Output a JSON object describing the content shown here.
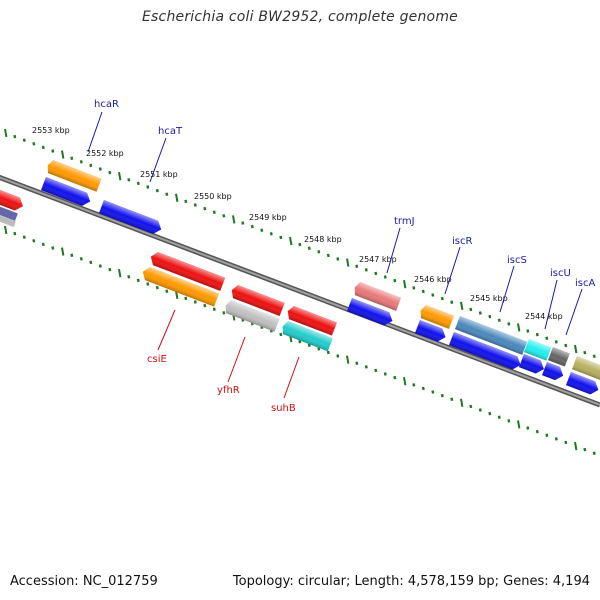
{
  "title": "Escherichia coli BW2952, complete genome",
  "footer": {
    "accession": "Accession: NC_012759",
    "summary": "Topology: circular; Length: 4,578,159 bp; Genes: 4,194"
  },
  "colors": {
    "backbone": "#8a8a8a",
    "tick_dots": "#1d7a1d",
    "label_forward": "#1a1aa8",
    "label_reverse": "#d01010"
  },
  "kbp_labels": [
    "2553 kbp",
    "2552 kbp",
    "2551 kbp",
    "2550 kbp",
    "2549 kbp",
    "2548 kbp",
    "2547 kbp",
    "2546 kbp",
    "2545 kbp",
    "2544 kbp"
  ],
  "forward_gene_labels": [
    "hcaR",
    "hcaT",
    "trmJ",
    "iscR",
    "iscS",
    "iscU",
    "iscA"
  ],
  "reverse_gene_labels": [
    "csiE",
    "yfhR",
    "suhB"
  ],
  "gene_colors": {
    "hcaR": "#ff9900",
    "hcaT_cds": "#1111ee",
    "csiE": "#ff9900",
    "yfhR": "#c0c0c0",
    "suhB": "#22cccc",
    "red_gene": "#ee1111",
    "trmJ": "#e87878",
    "iscR": "#ff9900",
    "iscS": "#4a88bb",
    "iscU": "#22eeee",
    "iscA": "#666666",
    "olive": "#b8b060",
    "left_purple": "#6666aa",
    "left_grey": "#bbbbbb"
  }
}
